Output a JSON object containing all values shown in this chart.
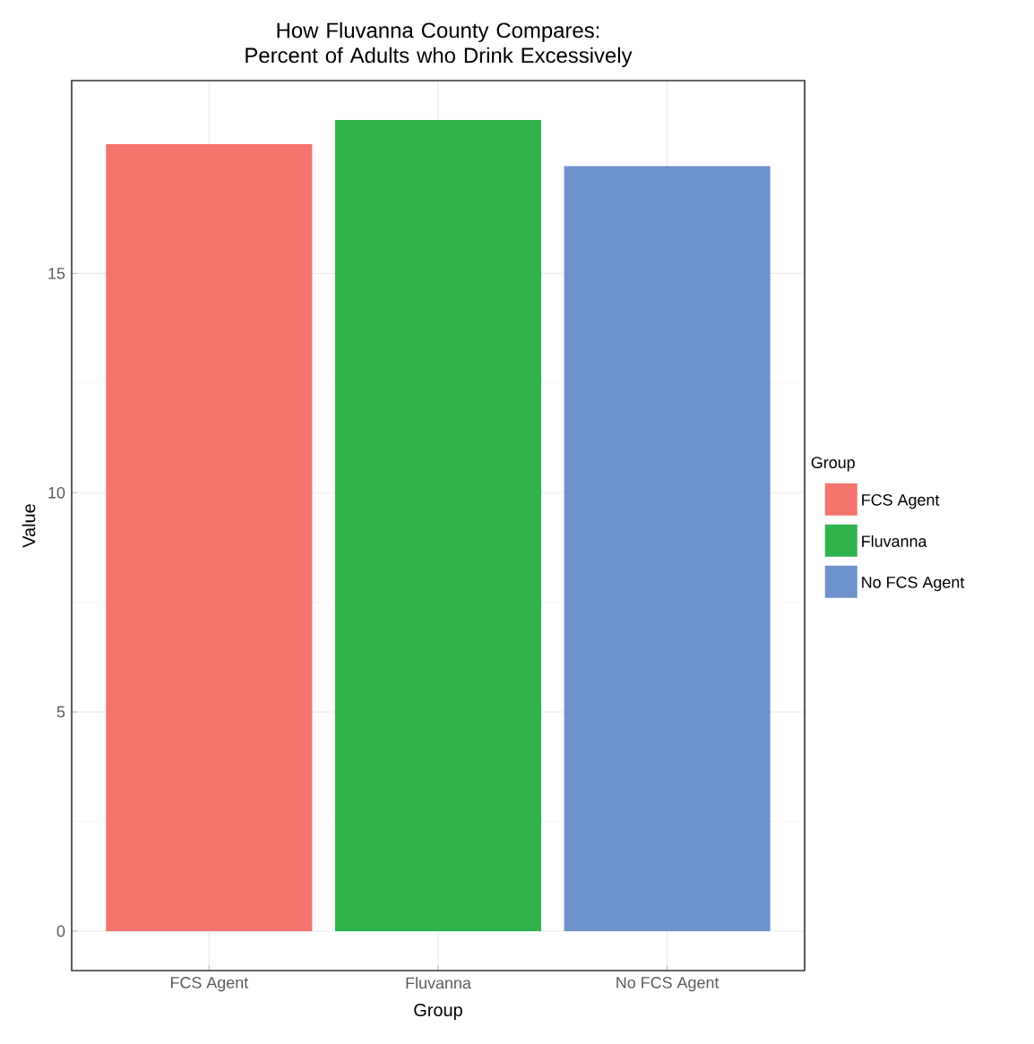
{
  "chart_data": {
    "type": "bar",
    "title": "How Fluvanna County Compares: Percent of Adults who Drink Excessively",
    "xlabel": "Group",
    "ylabel": "Value",
    "legend_title": "Group",
    "categories": [
      "FCS Agent",
      "Fluvanna",
      "No FCS Agent"
    ],
    "series": [
      {
        "name": "FCS Agent",
        "color": "#f3746d",
        "values": [
          17.95,
          null,
          null
        ]
      },
      {
        "name": "Fluvanna",
        "color": "#2fb34b",
        "values": [
          null,
          18.5,
          null
        ]
      },
      {
        "name": "No FCS Agent",
        "color": "#6e92cc",
        "values": [
          null,
          null,
          17.45
        ]
      }
    ],
    "ylim": [
      -0.9,
      19.4
    ],
    "yticks": [
      0,
      5,
      10,
      15
    ],
    "grid": true,
    "legend": "right"
  }
}
